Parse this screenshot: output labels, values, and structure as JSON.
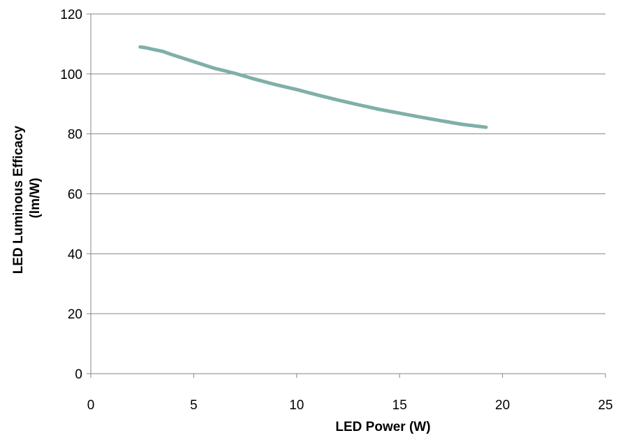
{
  "chart_data": {
    "type": "line",
    "title": "",
    "xlabel": "LED Power (W)",
    "ylabel_lines": [
      "LED Luminous Efficacy",
      "(lm/W)"
    ],
    "xlim": [
      0,
      25
    ],
    "ylim": [
      0,
      120
    ],
    "x_ticks": [
      0,
      5,
      10,
      15,
      20,
      25
    ],
    "y_ticks": [
      0,
      20,
      40,
      60,
      80,
      100,
      120
    ],
    "grid": {
      "horizontal": true,
      "vertical": false
    },
    "legend": "none",
    "series": [
      {
        "color": "#7fb0a8",
        "x": [
          2.4,
          2.7,
          3.0,
          3.5,
          4.0,
          5.0,
          6.0,
          7.0,
          8.0,
          9.0,
          10.0,
          11.0,
          12.0,
          13.0,
          14.0,
          15.0,
          16.0,
          17.0,
          18.0,
          19.2
        ],
        "y": [
          109.0,
          108.7,
          108.2,
          107.5,
          106.3,
          104.1,
          101.9,
          100.2,
          98.2,
          96.4,
          94.8,
          93.0,
          91.3,
          89.7,
          88.2,
          86.9,
          85.6,
          84.4,
          83.2,
          82.2
        ]
      }
    ]
  }
}
